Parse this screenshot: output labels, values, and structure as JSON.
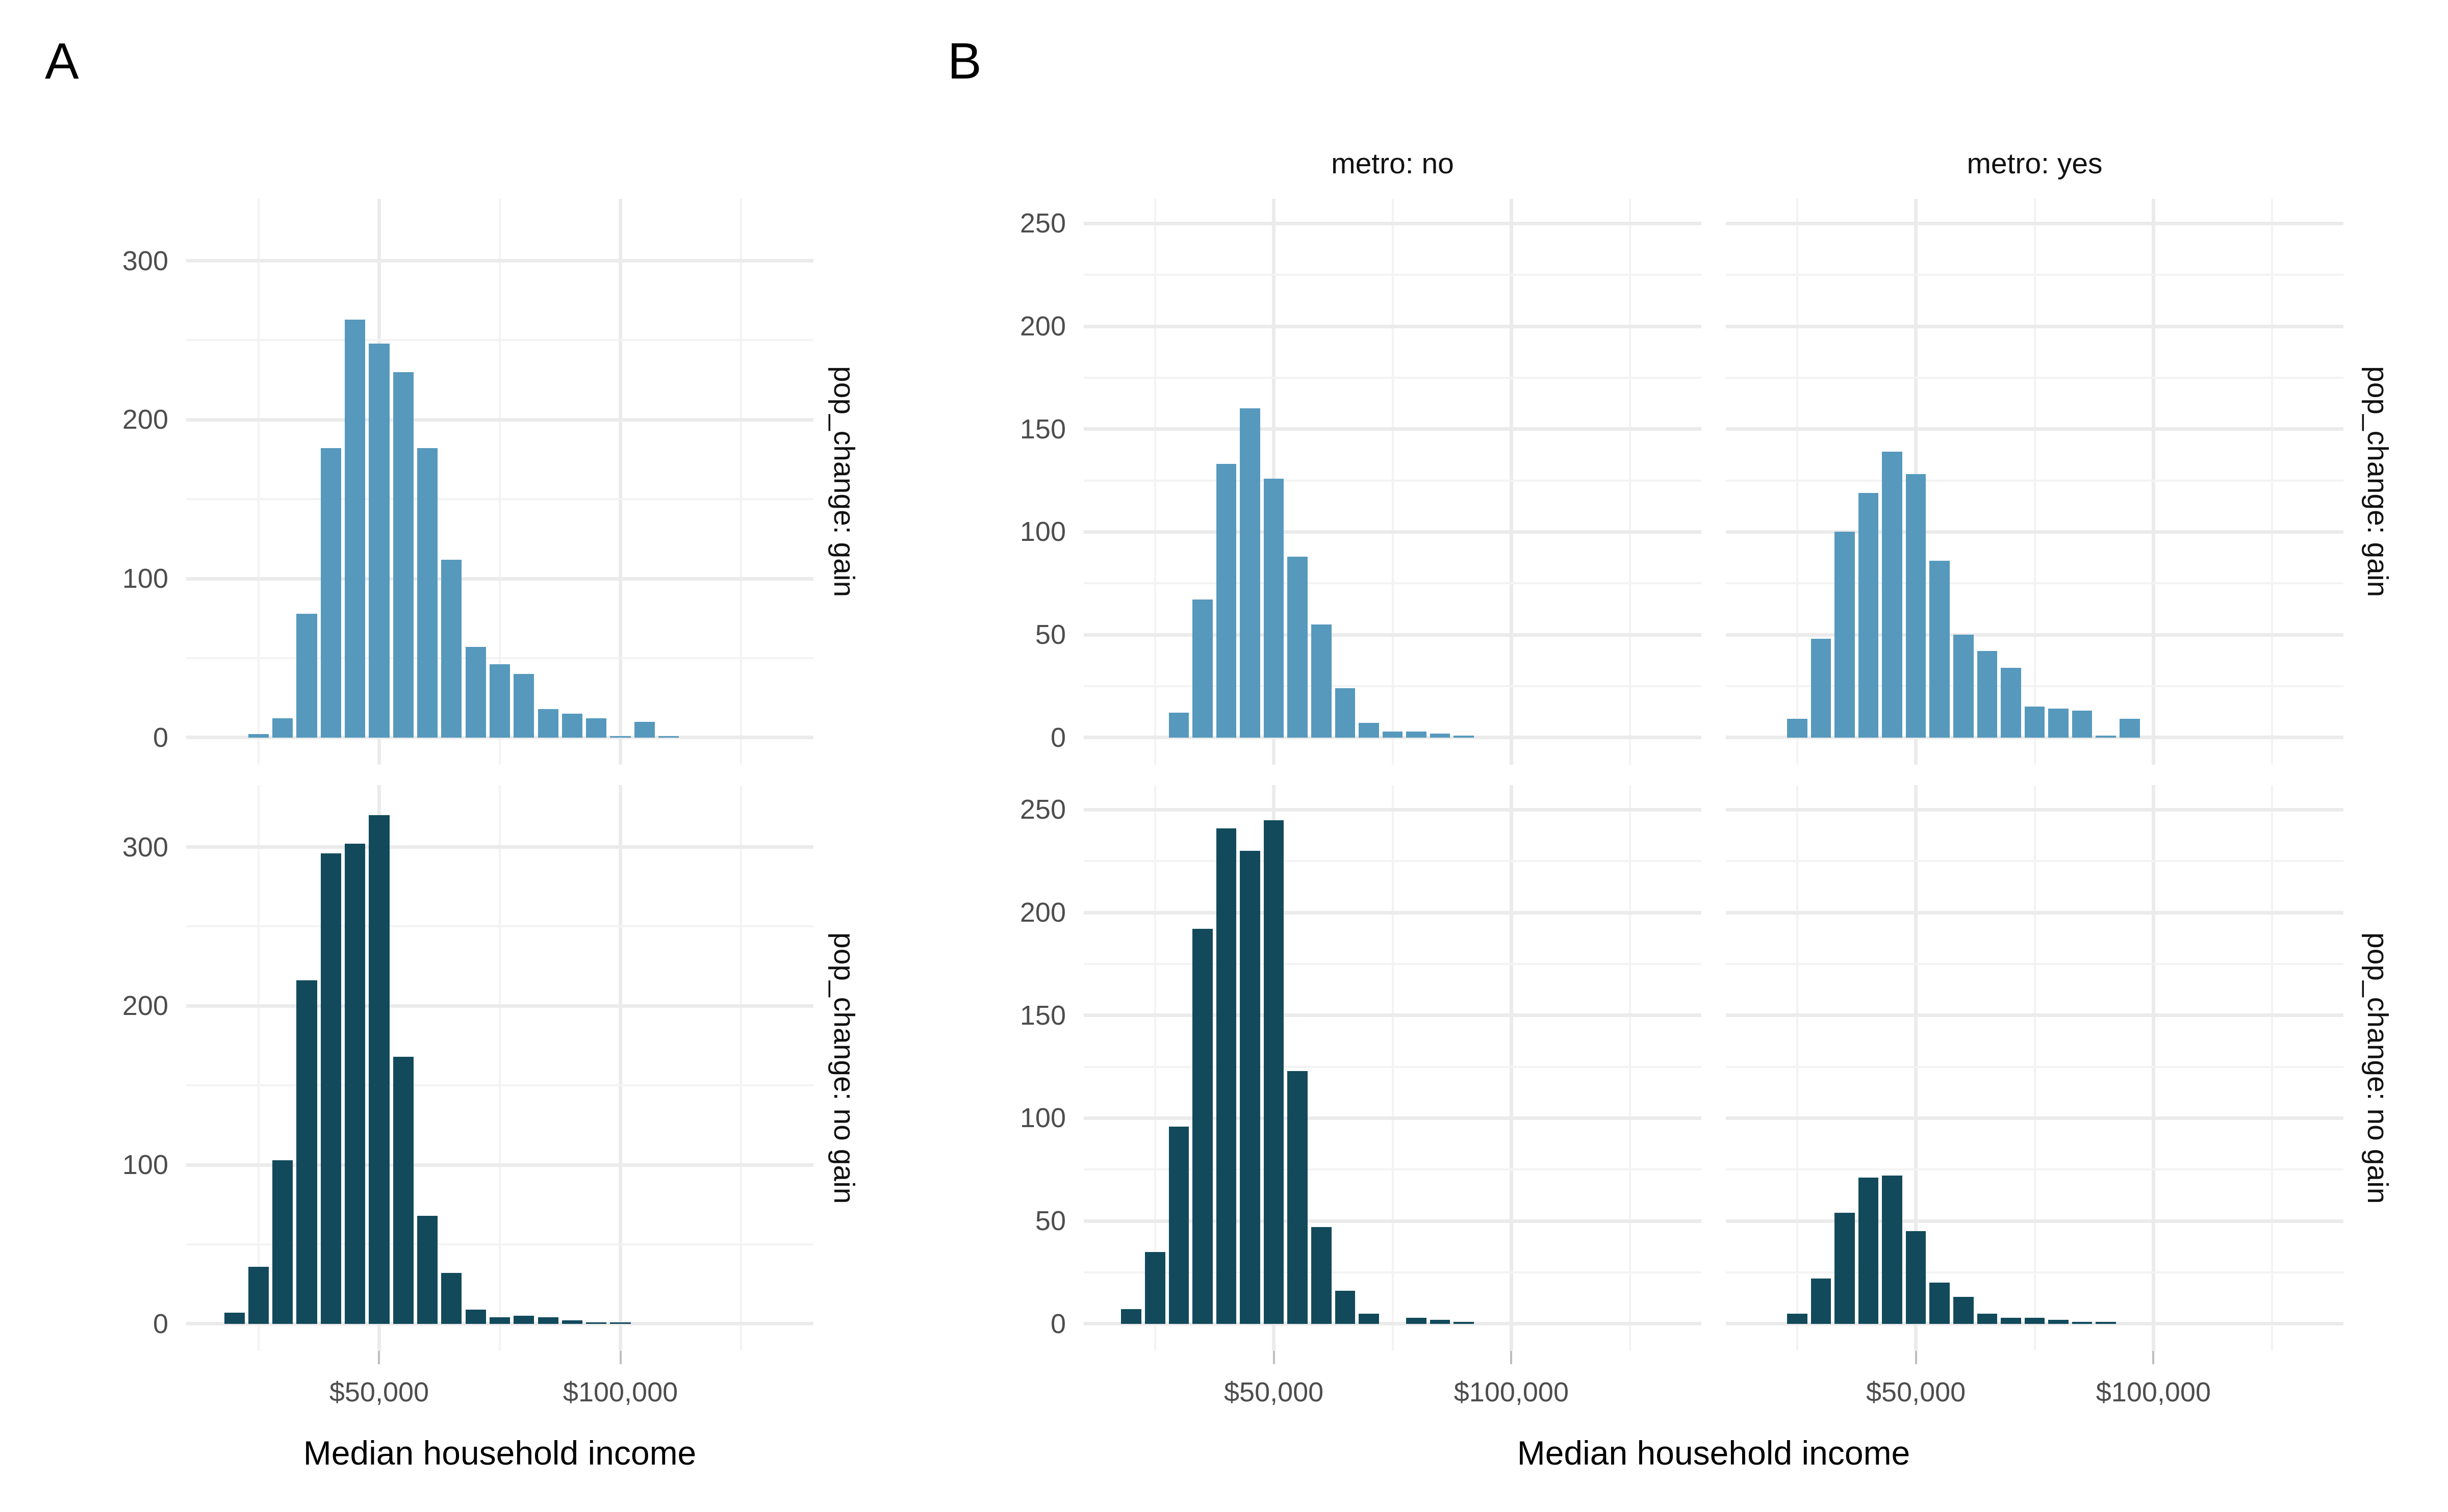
{
  "panel_tags": {
    "a": "A",
    "b": "B"
  },
  "x_axis_title": "Median household income",
  "colors": {
    "gain_fill": "#5699BD",
    "no_gain_fill": "#124A5C",
    "grid_major": "#EBEBEB",
    "grid_minor": "#F3F3F3",
    "axis_tick": "#BEBEBE",
    "axis_text": "#4D4D4D",
    "strip_text": "#111111",
    "title_text": "#000000",
    "background": "#FFFFFF"
  },
  "chart_data": [
    {
      "id": "A",
      "type": "bar",
      "subtype": "histogram",
      "title": "",
      "xlabel": "Median household income",
      "ylabel": "",
      "grid": "on",
      "legend": "none",
      "x_domain_thousands": [
        10,
        140
      ],
      "x_major_ticks_thousands": [
        50,
        100
      ],
      "x_minor_gridlines_thousands": [
        25,
        75,
        125
      ],
      "x_tick_labels": [
        "$50,000",
        "$100,000"
      ],
      "y_domain": [
        0,
        339
      ],
      "y_major_gridlines": [
        0,
        100,
        200,
        300
      ],
      "y_minor_gridlines": [
        50,
        150,
        250
      ],
      "y_tick_labels": [
        "0",
        "100",
        "200",
        "300"
      ],
      "bin_width_thousands": 5,
      "facet_layout": "rows: pop_change",
      "facets": [
        {
          "strip_label": "pop_change: gain",
          "row": 0,
          "col": 0,
          "fill_key": "gain_fill",
          "bin_centers_thousands": [
            25,
            30,
            35,
            40,
            45,
            50,
            55,
            60,
            65,
            70,
            75,
            80,
            85,
            90,
            95,
            100,
            105,
            110
          ],
          "counts": [
            2,
            12,
            78,
            182,
            263,
            248,
            230,
            182,
            112,
            57,
            46,
            40,
            18,
            15,
            12,
            1,
            10,
            1
          ]
        },
        {
          "strip_label": "pop_change: no gain",
          "row": 1,
          "col": 0,
          "fill_key": "no_gain_fill",
          "bin_centers_thousands": [
            20,
            25,
            30,
            35,
            40,
            45,
            50,
            55,
            60,
            65,
            70,
            75,
            80,
            85,
            90,
            95,
            100
          ],
          "counts": [
            7,
            36,
            103,
            216,
            296,
            302,
            320,
            168,
            68,
            32,
            9,
            4,
            5,
            4,
            2,
            1,
            1
          ]
        }
      ]
    },
    {
      "id": "B",
      "type": "bar",
      "subtype": "histogram",
      "title": "",
      "xlabel": "Median household income",
      "ylabel": "",
      "grid": "on",
      "legend": "none",
      "column_strip_labels": [
        "metro: no",
        "metro: yes"
      ],
      "x_domain_thousands": [
        10,
        140
      ],
      "x_major_ticks_thousands": [
        50,
        100
      ],
      "x_minor_gridlines_thousands": [
        25,
        75,
        125
      ],
      "x_tick_labels": [
        "$50,000",
        "$100,000"
      ],
      "y_domain": [
        0,
        262
      ],
      "y_major_gridlines": [
        0,
        50,
        100,
        150,
        200,
        250
      ],
      "y_minor_gridlines": [
        25,
        75,
        125,
        175,
        225
      ],
      "y_tick_labels": [
        "0",
        "50",
        "100",
        "150",
        "200",
        "250"
      ],
      "bin_width_thousands": 5,
      "facet_layout": "rows: pop_change, cols: metro",
      "facets": [
        {
          "strip_label": "pop_change: gain",
          "column_label": "metro: no",
          "row": 0,
          "col": 0,
          "fill_key": "gain_fill",
          "bin_centers_thousands": [
            30,
            35,
            40,
            45,
            50,
            55,
            60,
            65,
            70,
            75,
            80,
            85,
            90
          ],
          "counts": [
            12,
            67,
            133,
            160,
            126,
            88,
            55,
            24,
            7,
            3,
            3,
            2,
            1
          ]
        },
        {
          "strip_label": "pop_change: gain",
          "column_label": "metro: yes",
          "row": 0,
          "col": 1,
          "fill_key": "gain_fill",
          "bin_centers_thousands": [
            25,
            30,
            35,
            40,
            45,
            50,
            55,
            60,
            65,
            70,
            75,
            80,
            85,
            90,
            95
          ],
          "counts": [
            9,
            48,
            100,
            119,
            139,
            128,
            86,
            50,
            42,
            34,
            15,
            14,
            13,
            1,
            9
          ]
        },
        {
          "strip_label": "pop_change: no gain",
          "column_label": "metro: no",
          "row": 1,
          "col": 0,
          "fill_key": "no_gain_fill",
          "bin_centers_thousands": [
            20,
            25,
            30,
            35,
            40,
            45,
            50,
            55,
            60,
            65,
            70,
            75,
            80,
            85,
            90
          ],
          "counts": [
            7,
            35,
            96,
            192,
            241,
            230,
            245,
            123,
            47,
            16,
            5,
            0,
            3,
            2,
            1
          ]
        },
        {
          "strip_label": "pop_change: no gain",
          "column_label": "metro: yes",
          "row": 1,
          "col": 1,
          "fill_key": "no_gain_fill",
          "bin_centers_thousands": [
            25,
            30,
            35,
            40,
            45,
            50,
            55,
            60,
            65,
            70,
            75,
            80,
            85,
            90
          ],
          "counts": [
            5,
            22,
            54,
            71,
            72,
            45,
            20,
            13,
            5,
            3,
            3,
            2,
            1,
            1
          ]
        }
      ]
    }
  ]
}
